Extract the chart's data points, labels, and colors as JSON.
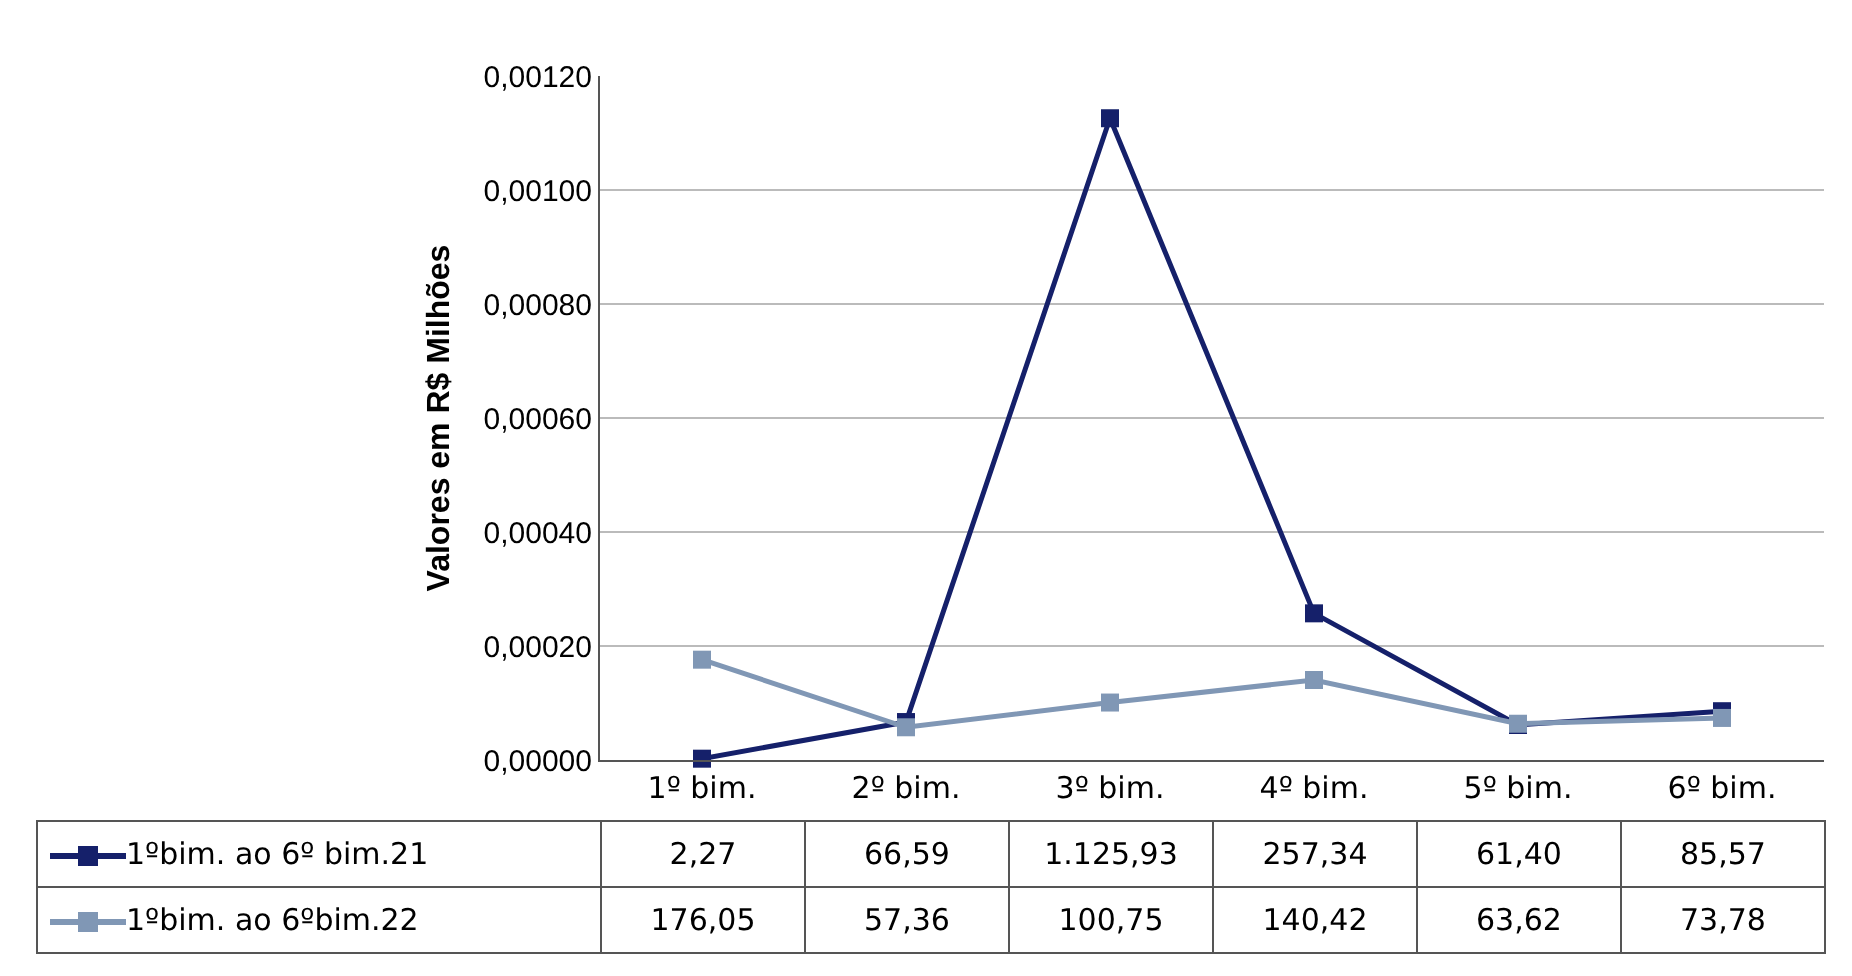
{
  "chart_data": {
    "type": "line",
    "ylabel": "Valores em R$ Milhões",
    "categories": [
      "1º bim.",
      "2º bim.",
      "3º bim.",
      "4º bim.",
      "5º bim.",
      "6º bim."
    ],
    "series": [
      {
        "name": "1ºbim. ao  6º bim.21",
        "color": "#15206a",
        "values": [
          2.3e-06,
          6.66e-05,
          0.0011259,
          0.0002573,
          6.14e-05,
          8.56e-05
        ]
      },
      {
        "name": "1ºbim. ao 6ºbim.22",
        "color": "#8097b5",
        "values": [
          0.000176,
          5.74e-05,
          0.0001008,
          0.0001404,
          6.36e-05,
          7.38e-05
        ]
      }
    ],
    "annotations": [
      "2,27",
      "66,59",
      "1.125,93",
      "257,34",
      "61,40",
      "85,57",
      "176,05",
      "57,36",
      "100,75",
      "140,42",
      "63,62",
      "73,78"
    ],
    "ylim": [
      0,
      0.0012
    ],
    "yticks": [
      {
        "value": 0,
        "label": "0,00000"
      },
      {
        "value": 0.0002,
        "label": "0,00020"
      },
      {
        "value": 0.0004,
        "label": "0,00040"
      },
      {
        "value": 0.0006,
        "label": "0,00060"
      },
      {
        "value": 0.0008,
        "label": "0,00080"
      },
      {
        "value": 0.001,
        "label": "0,00100"
      },
      {
        "value": 0.0012,
        "label": "0,00120"
      }
    ],
    "grid": "y",
    "legend": "bottom",
    "marker": "square",
    "line_style": "solid"
  }
}
